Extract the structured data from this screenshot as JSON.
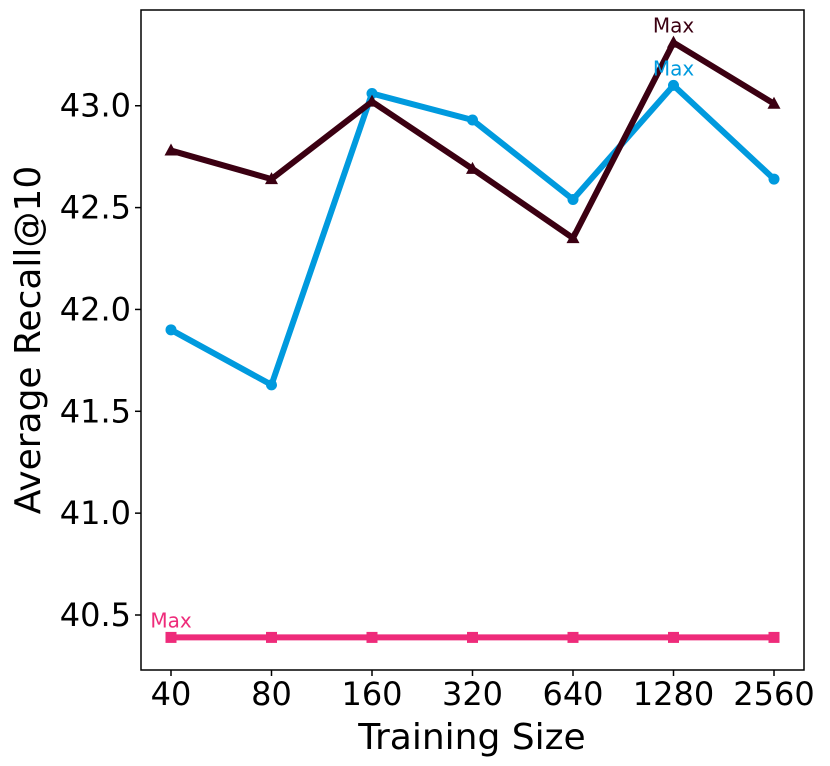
{
  "chart_data": {
    "type": "line",
    "title": "",
    "xlabel": "Training Size",
    "ylabel": "Average Recall@10",
    "categories": [
      "40",
      "80",
      "160",
      "320",
      "640",
      "1280",
      "2560"
    ],
    "ylim": [
      40.23,
      43.47
    ],
    "yticks": [
      40.5,
      41.0,
      41.5,
      42.0,
      42.5,
      43.0
    ],
    "ytick_labels": [
      "40.5",
      "41.0",
      "41.5",
      "42.0",
      "42.5",
      "43.0"
    ],
    "grid": false,
    "legend": "none",
    "series": [
      {
        "color": "#009ADE",
        "marker": "circle",
        "values": [
          41.9,
          41.63,
          43.06,
          42.93,
          42.54,
          43.1,
          42.64
        ],
        "annotation": {
          "text": "Max",
          "index": 5
        }
      },
      {
        "color": "#3B0012",
        "marker": "triangle",
        "values": [
          42.78,
          42.64,
          43.02,
          42.69,
          42.35,
          43.31,
          43.01
        ],
        "annotation": {
          "text": "Max",
          "index": 5
        }
      },
      {
        "color": "#EE2B7A",
        "marker": "square",
        "values": [
          40.39,
          40.39,
          40.39,
          40.39,
          40.39,
          40.39,
          40.39
        ],
        "annotation": {
          "text": "Max",
          "index": 0
        }
      }
    ]
  }
}
